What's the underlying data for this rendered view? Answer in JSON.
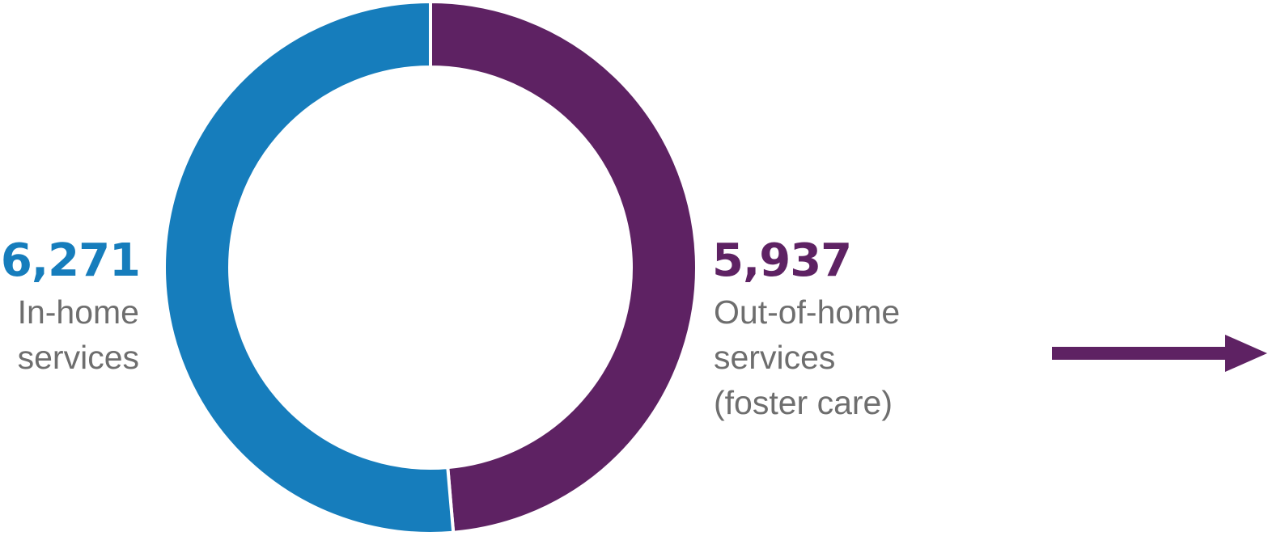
{
  "chart_data": {
    "type": "pie",
    "variant": "donut",
    "slices": [
      {
        "value": 5937,
        "value_text": "5,937",
        "label_lines": [
          "Out-of-home",
          "services",
          "(foster care)"
        ],
        "color": "#5e2263"
      },
      {
        "value": 6271,
        "value_text": "6,271",
        "label_lines": [
          "In-home",
          "services"
        ],
        "color": "#167dbc"
      }
    ],
    "arrow_color": "#5e2263",
    "label_text_color": "#6e6e6e"
  }
}
